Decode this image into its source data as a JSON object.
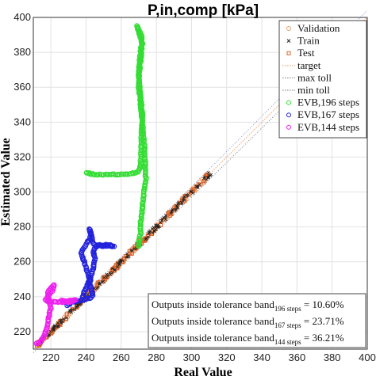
{
  "chart_data": {
    "type": "scatter",
    "title": "P,in,comp [kPa]",
    "xlabel": "Real Value",
    "ylabel": "Estimated Value",
    "xlim": [
      210,
      400
    ],
    "ylim": [
      210,
      400
    ],
    "xticks": [
      220,
      240,
      260,
      280,
      300,
      320,
      340,
      360,
      380,
      400
    ],
    "yticks": [
      220,
      240,
      260,
      280,
      300,
      320,
      340,
      360,
      380,
      400
    ],
    "grid": true,
    "legend_position": "top-right",
    "legend": [
      {
        "label": "Validation",
        "marker": "circle",
        "color": "#e8a06a"
      },
      {
        "label": "Train",
        "marker": "x",
        "color": "#222222"
      },
      {
        "label": "Test",
        "marker": "square",
        "color": "#d9642a"
      },
      {
        "label": "target",
        "marker": "line",
        "color": "#f0a070"
      },
      {
        "label": "max toll",
        "marker": "dotted-line",
        "color": "#777777"
      },
      {
        "label": "min toll",
        "marker": "dotted-line",
        "color": "#777777"
      },
      {
        "label": "EVB,196 steps",
        "marker": "circle",
        "color": "#33dd33"
      },
      {
        "label": "EVB,167 steps",
        "marker": "circle",
        "color": "#2222dd"
      },
      {
        "label": "EVB,144 steps",
        "marker": "circle",
        "color": "#ee22ee"
      }
    ],
    "series": [
      {
        "name": "target",
        "kind": "line",
        "x": [
          210,
          400
        ],
        "y": [
          210,
          400
        ]
      },
      {
        "name": "max toll",
        "kind": "line",
        "x": [
          210,
          400
        ],
        "y": [
          212,
          404
        ]
      },
      {
        "name": "min toll",
        "kind": "line",
        "x": [
          210,
          400
        ],
        "y": [
          208,
          396
        ]
      },
      {
        "name": "Train",
        "kind": "diagonal-cloud",
        "x_range": [
          212,
          312
        ],
        "spread": 1.5
      },
      {
        "name": "Test",
        "kind": "diagonal-cloud",
        "x_range": [
          212,
          312
        ],
        "spread": 1.5
      },
      {
        "name": "Validation",
        "kind": "diagonal-cloud",
        "x_range": [
          212,
          312
        ],
        "spread": 1.5
      },
      {
        "name": "EVB,196 steps",
        "kind": "path",
        "x": [
          240,
          245,
          255,
          262,
          268,
          270,
          271,
          271.5,
          272,
          271,
          270,
          271,
          272,
          270,
          269,
          270,
          272,
          271,
          270,
          270,
          271,
          273,
          274,
          273,
          272,
          271,
          271,
          270,
          270
        ],
        "y": [
          311,
          310,
          310,
          310,
          311,
          312,
          316,
          330,
          345,
          355,
          365,
          375,
          385,
          392,
          395,
          393,
          388,
          380,
          370,
          360,
          350,
          330,
          308,
          300,
          290,
          282,
          276,
          271,
          269
        ]
      },
      {
        "name": "EVB,167 steps",
        "kind": "path",
        "x": [
          229,
          232,
          237,
          242,
          244,
          243,
          242,
          243,
          244,
          245,
          244,
          246,
          252,
          256,
          250,
          245,
          244,
          243,
          242,
          243,
          240,
          237,
          239,
          242,
          240,
          238
        ],
        "y": [
          235,
          237,
          238,
          239,
          241,
          244,
          248,
          252,
          256,
          262,
          266,
          269,
          270,
          269,
          269,
          270,
          271,
          275,
          279,
          275,
          270,
          265,
          260,
          250,
          245,
          240
        ]
      },
      {
        "name": "EVB,144 steps",
        "kind": "path",
        "x": [
          212,
          214,
          216,
          217,
          218,
          219,
          220,
          219,
          218,
          220,
          222,
          221,
          219,
          217,
          219,
          223,
          228,
          232,
          234,
          230,
          226
        ],
        "y": [
          213,
          214,
          217,
          220,
          224,
          229,
          234,
          238,
          242,
          245,
          247,
          244,
          241,
          238,
          237,
          237,
          237,
          238,
          238,
          237,
          238
        ]
      }
    ],
    "annotations": [
      {
        "label": "Outputs inside tolerance band",
        "subscript": "196 steps",
        "value": "= 10.60%"
      },
      {
        "label": "Outputs inside tolerance band",
        "subscript": "167 steps",
        "value": "= 23.71%"
      },
      {
        "label": "Outputs inside tolerance band",
        "subscript": "144 steps",
        "value": "= 36.21%"
      }
    ]
  }
}
